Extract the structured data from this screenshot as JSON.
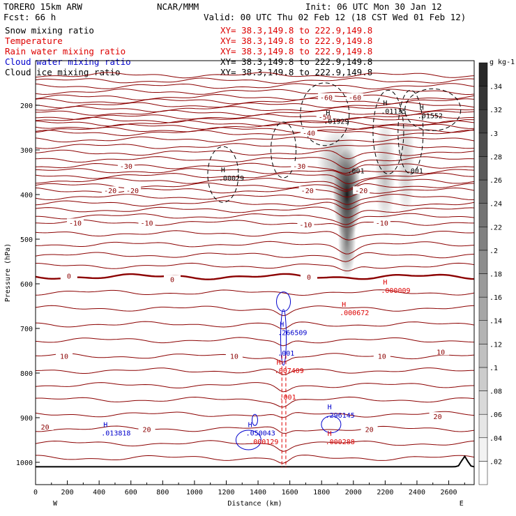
{
  "header": {
    "model": "TORERO  15km ARW",
    "center": "NCAR/MMM",
    "init": "Init: 06 UTC Mon 30 Jan 12",
    "fcst": "Fcst:   66 h",
    "valid": "Valid: 00 UTC Thu 02 Feb 12 (18 CST Wed 01 Feb 12)"
  },
  "fields": [
    {
      "name": "Snow mixing ratio",
      "xy": "XY=  38.3,149.8 to 222.9,149.8",
      "name_color": "#000000",
      "xy_color": "#dd0000"
    },
    {
      "name": "Temperature",
      "xy": "XY=  38.3,149.8 to 222.9,149.8",
      "name_color": "#dd0000",
      "xy_color": "#dd0000"
    },
    {
      "name": "Rain water mixing ratio",
      "xy": "XY=  38.3,149.8 to 222.9,149.8",
      "name_color": "#dd0000",
      "xy_color": "#dd0000"
    },
    {
      "name": "Cloud water mixing ratio",
      "xy": "XY=  38.3,149.8 to 222.9,149.8",
      "name_color": "#0000cc",
      "xy_color": "#000000"
    },
    {
      "name": "Cloud ice mixing ratio",
      "xy": "XY=  38.3,149.8 to 222.9,149.8",
      "name_color": "#000000",
      "xy_color": "#000000"
    }
  ],
  "chart_data": {
    "type": "cross-section",
    "xlabel": "Distance (km)",
    "ylabel": "Pressure (hPa)",
    "x_ticks": [
      0,
      200,
      400,
      600,
      800,
      1000,
      1200,
      1400,
      1600,
      1800,
      2000,
      2200,
      2400,
      2600
    ],
    "xlim": [
      0,
      2760
    ],
    "x_end_labels": {
      "left": "W",
      "right": "E"
    },
    "y_ticks": [
      200,
      300,
      400,
      500,
      600,
      700,
      800,
      900,
      1000
    ],
    "ylim": [
      100,
      1050
    ],
    "temperature_contours": {
      "color": "#8b0000",
      "interval_c": 2,
      "labels": [
        {
          "value": -60,
          "x": 1830,
          "p": 182
        },
        {
          "value": -60,
          "x": 2010,
          "p": 182
        },
        {
          "value": -50,
          "x": 1820,
          "p": 226
        },
        {
          "value": -40,
          "x": 1720,
          "p": 262
        },
        {
          "value": -30,
          "x": 570,
          "p": 336
        },
        {
          "value": -30,
          "x": 1660,
          "p": 336
        },
        {
          "value": -20,
          "x": 470,
          "p": 391
        },
        {
          "value": -20,
          "x": 610,
          "p": 391
        },
        {
          "value": -20,
          "x": 1710,
          "p": 391
        },
        {
          "value": -20,
          "x": 2050,
          "p": 391
        },
        {
          "value": -10,
          "x": 250,
          "p": 463
        },
        {
          "value": -10,
          "x": 700,
          "p": 463
        },
        {
          "value": -10,
          "x": 1700,
          "p": 467
        },
        {
          "value": -10,
          "x": 2180,
          "p": 463
        },
        {
          "value": 0,
          "x": 210,
          "p": 582
        },
        {
          "value": 0,
          "x": 860,
          "p": 590
        },
        {
          "value": 0,
          "x": 1720,
          "p": 584
        },
        {
          "value": 10,
          "x": 180,
          "p": 762
        },
        {
          "value": 10,
          "x": 1250,
          "p": 762
        },
        {
          "value": 10,
          "x": 2180,
          "p": 762
        },
        {
          "value": 10,
          "x": 2550,
          "p": 752
        },
        {
          "value": 20,
          "x": 60,
          "p": 920
        },
        {
          "value": 20,
          "x": 700,
          "p": 926
        },
        {
          "value": 20,
          "x": 2100,
          "p": 926
        },
        {
          "value": 20,
          "x": 2530,
          "p": 897
        }
      ]
    },
    "cloud_ice_maxima": [
      {
        "label": "H",
        "value": ".00029",
        "x": 1180,
        "p": 366,
        "color": "#000000"
      },
      {
        "label": "H",
        "value": ".01929",
        "x": 1840,
        "p": 238,
        "color": "#000000"
      },
      {
        "label": "H",
        "value": ".01135",
        "x": 2200,
        "p": 216,
        "color": "#000000"
      },
      {
        "label": "H",
        "value": ".01552",
        "x": 2430,
        "p": 226,
        "color": "#000000"
      },
      {
        "label": "",
        "value": ".001",
        "x": 1990,
        "p": 349,
        "color": "#000000"
      },
      {
        "label": "",
        "value": ".001",
        "x": 2360,
        "p": 349,
        "color": "#000000"
      }
    ],
    "cloud_water_maxima": [
      {
        "label": "H",
        "value": ".266509",
        "x": 1550,
        "p": 712,
        "color": "#0000cc"
      },
      {
        "label": "",
        "value": ".001",
        "x": 1550,
        "p": 758,
        "color": "#0000cc"
      },
      {
        "label": "H",
        "value": ".013818",
        "x": 440,
        "p": 937,
        "color": "#0000cc"
      },
      {
        "label": "H",
        "value": ".050043",
        "x": 1350,
        "p": 937,
        "color": "#0000cc"
      },
      {
        "label": "H",
        "value": ".296145",
        "x": 1850,
        "p": 897,
        "color": "#0000cc"
      }
    ],
    "rain_water_maxima": [
      {
        "label": "H",
        "value": ".000009",
        "x": 2200,
        "p": 617,
        "color": "#dd0000"
      },
      {
        "label": "H",
        "value": ".000672",
        "x": 1940,
        "p": 667,
        "color": "#dd0000"
      },
      {
        "label": "H",
        "value": ".007409",
        "x": 1530,
        "p": 797,
        "color": "#dd0000"
      },
      {
        "label": "",
        "value": ".001",
        "x": 1560,
        "p": 856,
        "color": "#dd0000"
      },
      {
        "label": "",
        "value": ".000129",
        "x": 1370,
        "p": 956,
        "color": "#dd0000"
      },
      {
        "label": "H",
        "value": ".000288",
        "x": 1850,
        "p": 956,
        "color": "#dd0000"
      }
    ],
    "snow_shading": {
      "units": "g kg-1",
      "colorbar_ticks": [
        ".02",
        ".04",
        ".06",
        ".08",
        ".1",
        ".12",
        ".14",
        ".16",
        ".18",
        ".2",
        ".22",
        ".24",
        ".26",
        ".28",
        ".3",
        ".32",
        ".34"
      ],
      "blobs": [
        {
          "x": 1960,
          "p": 400,
          "rx_km": 55,
          "rp_hpa": 65,
          "peak": 0.34
        },
        {
          "x": 1900,
          "p": 330,
          "rx_km": 80,
          "rp_hpa": 50,
          "peak": 0.12
        },
        {
          "x": 1960,
          "p": 500,
          "rx_km": 35,
          "rp_hpa": 55,
          "peak": 0.2
        },
        {
          "x": 2200,
          "p": 350,
          "rx_km": 40,
          "rp_hpa": 80,
          "peak": 0.1
        },
        {
          "x": 2330,
          "p": 330,
          "rx_km": 35,
          "rp_hpa": 80,
          "peak": 0.08
        }
      ]
    }
  }
}
